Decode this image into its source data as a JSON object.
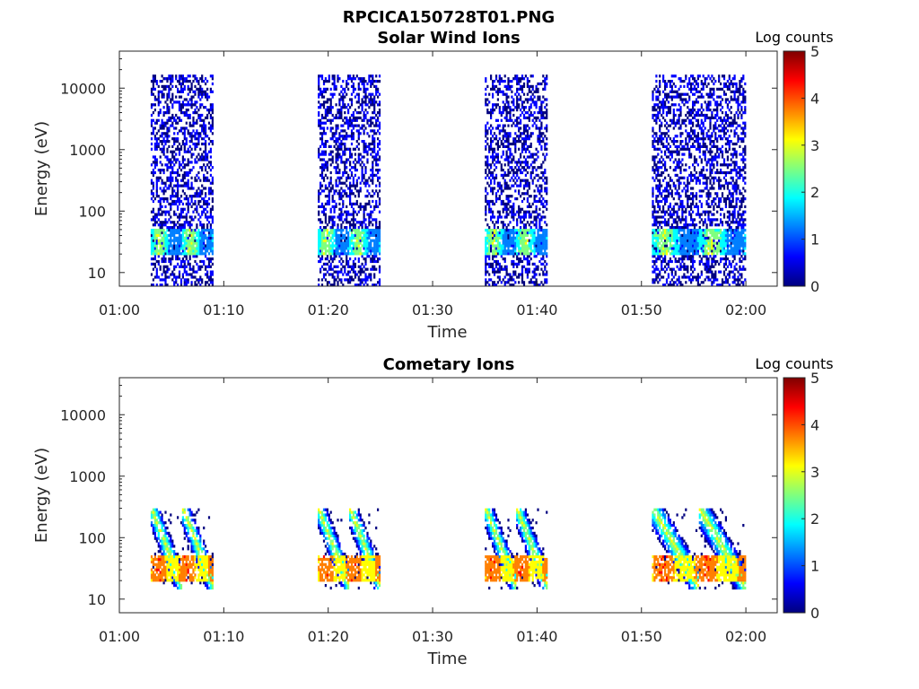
{
  "figure_title": "RPCICA150728T01.PNG",
  "colormap": [
    "#00007f",
    "#0000ff",
    "#007fff",
    "#00ffff",
    "#7fff7f",
    "#ffff00",
    "#ff7f00",
    "#ff0000",
    "#7f0000"
  ],
  "chart_data": [
    {
      "type": "heatmap",
      "title": "Solar Wind Ions",
      "xlabel": "Time",
      "ylabel": "Energy (eV)",
      "x_ticks": [
        "01:00",
        "01:10",
        "01:20",
        "01:30",
        "01:40",
        "01:50",
        "02:00"
      ],
      "xlim": [
        "01:00",
        "02:03"
      ],
      "y_scale": "log",
      "y_ticks": [
        10,
        100,
        1000,
        10000
      ],
      "y_tick_labels": [
        "10",
        "100",
        "1000",
        "10000"
      ],
      "ylim": [
        6,
        40000
      ],
      "colorbar": {
        "label": "Log counts",
        "range": [
          0,
          5
        ],
        "ticks": [
          "0",
          "1",
          "2",
          "3",
          "4",
          "5"
        ]
      },
      "scan_blocks": [
        {
          "start": "01:03",
          "end": "01:09"
        },
        {
          "start": "01:19",
          "end": "01:25"
        },
        {
          "start": "01:35",
          "end": "01:41"
        },
        {
          "start": "01:51",
          "end": "02:00"
        }
      ],
      "features": [
        {
          "type": "sparse_noise",
          "energy_range": [
            6,
            16000
          ],
          "log_counts": [
            0,
            1
          ]
        },
        {
          "type": "hot_band",
          "energy_range": [
            20,
            50
          ],
          "log_counts": [
            1,
            3
          ]
        }
      ]
    },
    {
      "type": "heatmap",
      "title": "Cometary Ions",
      "xlabel": "Time",
      "ylabel": "Energy (eV)",
      "x_ticks": [
        "01:00",
        "01:10",
        "01:20",
        "01:30",
        "01:40",
        "01:50",
        "02:00"
      ],
      "xlim": [
        "01:00",
        "02:03"
      ],
      "y_scale": "log",
      "y_ticks": [
        10,
        100,
        1000,
        10000
      ],
      "y_tick_labels": [
        "10",
        "100",
        "1000",
        "10000"
      ],
      "ylim": [
        6,
        40000
      ],
      "colorbar": {
        "label": "Log counts",
        "range": [
          0,
          5
        ],
        "ticks": [
          "0",
          "1",
          "2",
          "3",
          "4",
          "5"
        ]
      },
      "scan_blocks": [
        {
          "start": "01:03",
          "end": "01:09"
        },
        {
          "start": "01:19",
          "end": "01:25"
        },
        {
          "start": "01:35",
          "end": "01:41"
        },
        {
          "start": "01:51",
          "end": "02:00"
        }
      ],
      "features": [
        {
          "type": "dispersive_streaks",
          "energy_range": [
            15,
            300
          ],
          "log_counts": [
            0,
            3
          ]
        },
        {
          "type": "hot_band",
          "energy_range": [
            20,
            50
          ],
          "log_counts": [
            3,
            4.2
          ]
        }
      ]
    }
  ]
}
